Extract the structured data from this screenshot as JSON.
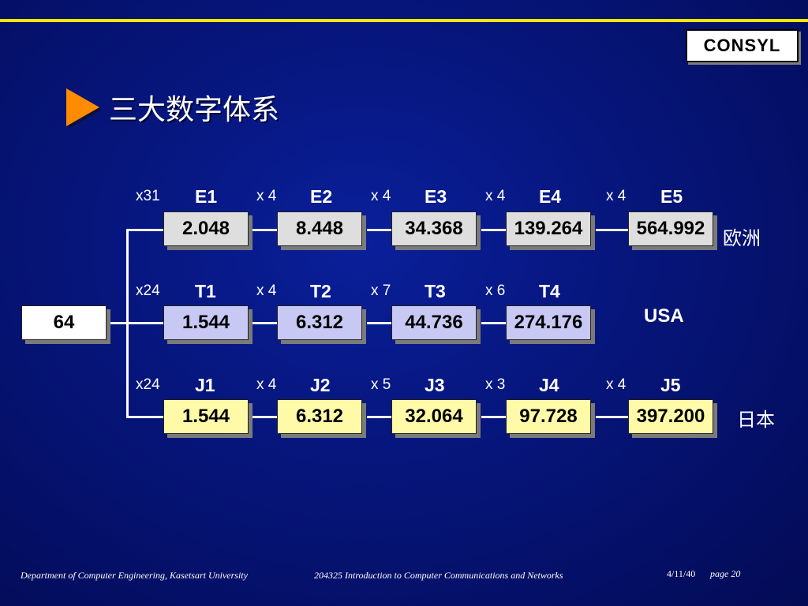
{
  "brand": {
    "logo_text": "CONSYL"
  },
  "slide": {
    "title": "三大数字体系",
    "title_icon": "triangle-bullet-icon"
  },
  "root": {
    "value": "64"
  },
  "rows": {
    "europe": {
      "region": "欧洲",
      "multipliers": [
        "x31",
        "x 4",
        "x 4",
        "x 4",
        "x 4"
      ],
      "levels": [
        "E1",
        "E2",
        "E3",
        "E4",
        "E5"
      ],
      "values": [
        "2.048",
        "8.448",
        "34.368",
        "139.264",
        "564.992"
      ]
    },
    "usa": {
      "region": "USA",
      "multipliers": [
        "x24",
        "x 4",
        "x 7",
        "x 6"
      ],
      "levels": [
        "T1",
        "T2",
        "T3",
        "T4"
      ],
      "values": [
        "1.544",
        "6.312",
        "44.736",
        "274.176"
      ]
    },
    "japan": {
      "region": "日本",
      "multipliers": [
        "x24",
        "x 4",
        "x 5",
        "x 3",
        "x 4"
      ],
      "levels": [
        "J1",
        "J2",
        "J3",
        "J4",
        "J5"
      ],
      "values": [
        "1.544",
        "6.312",
        "32.064",
        "97.728",
        "397.200"
      ]
    }
  },
  "colors": {
    "background": "#06157a",
    "accent_line": "#ffe600",
    "title_icon": "#ff8c00",
    "europe_box": "#dedede",
    "usa_box": "#c8c8f4",
    "japan_box": "#fffaa8"
  },
  "footer": {
    "department": "Department of Computer Engineering, Kasetsart University",
    "course": "204325 Introduction to Computer Communications and Networks",
    "date": "4/11/40",
    "page": "page 20"
  }
}
